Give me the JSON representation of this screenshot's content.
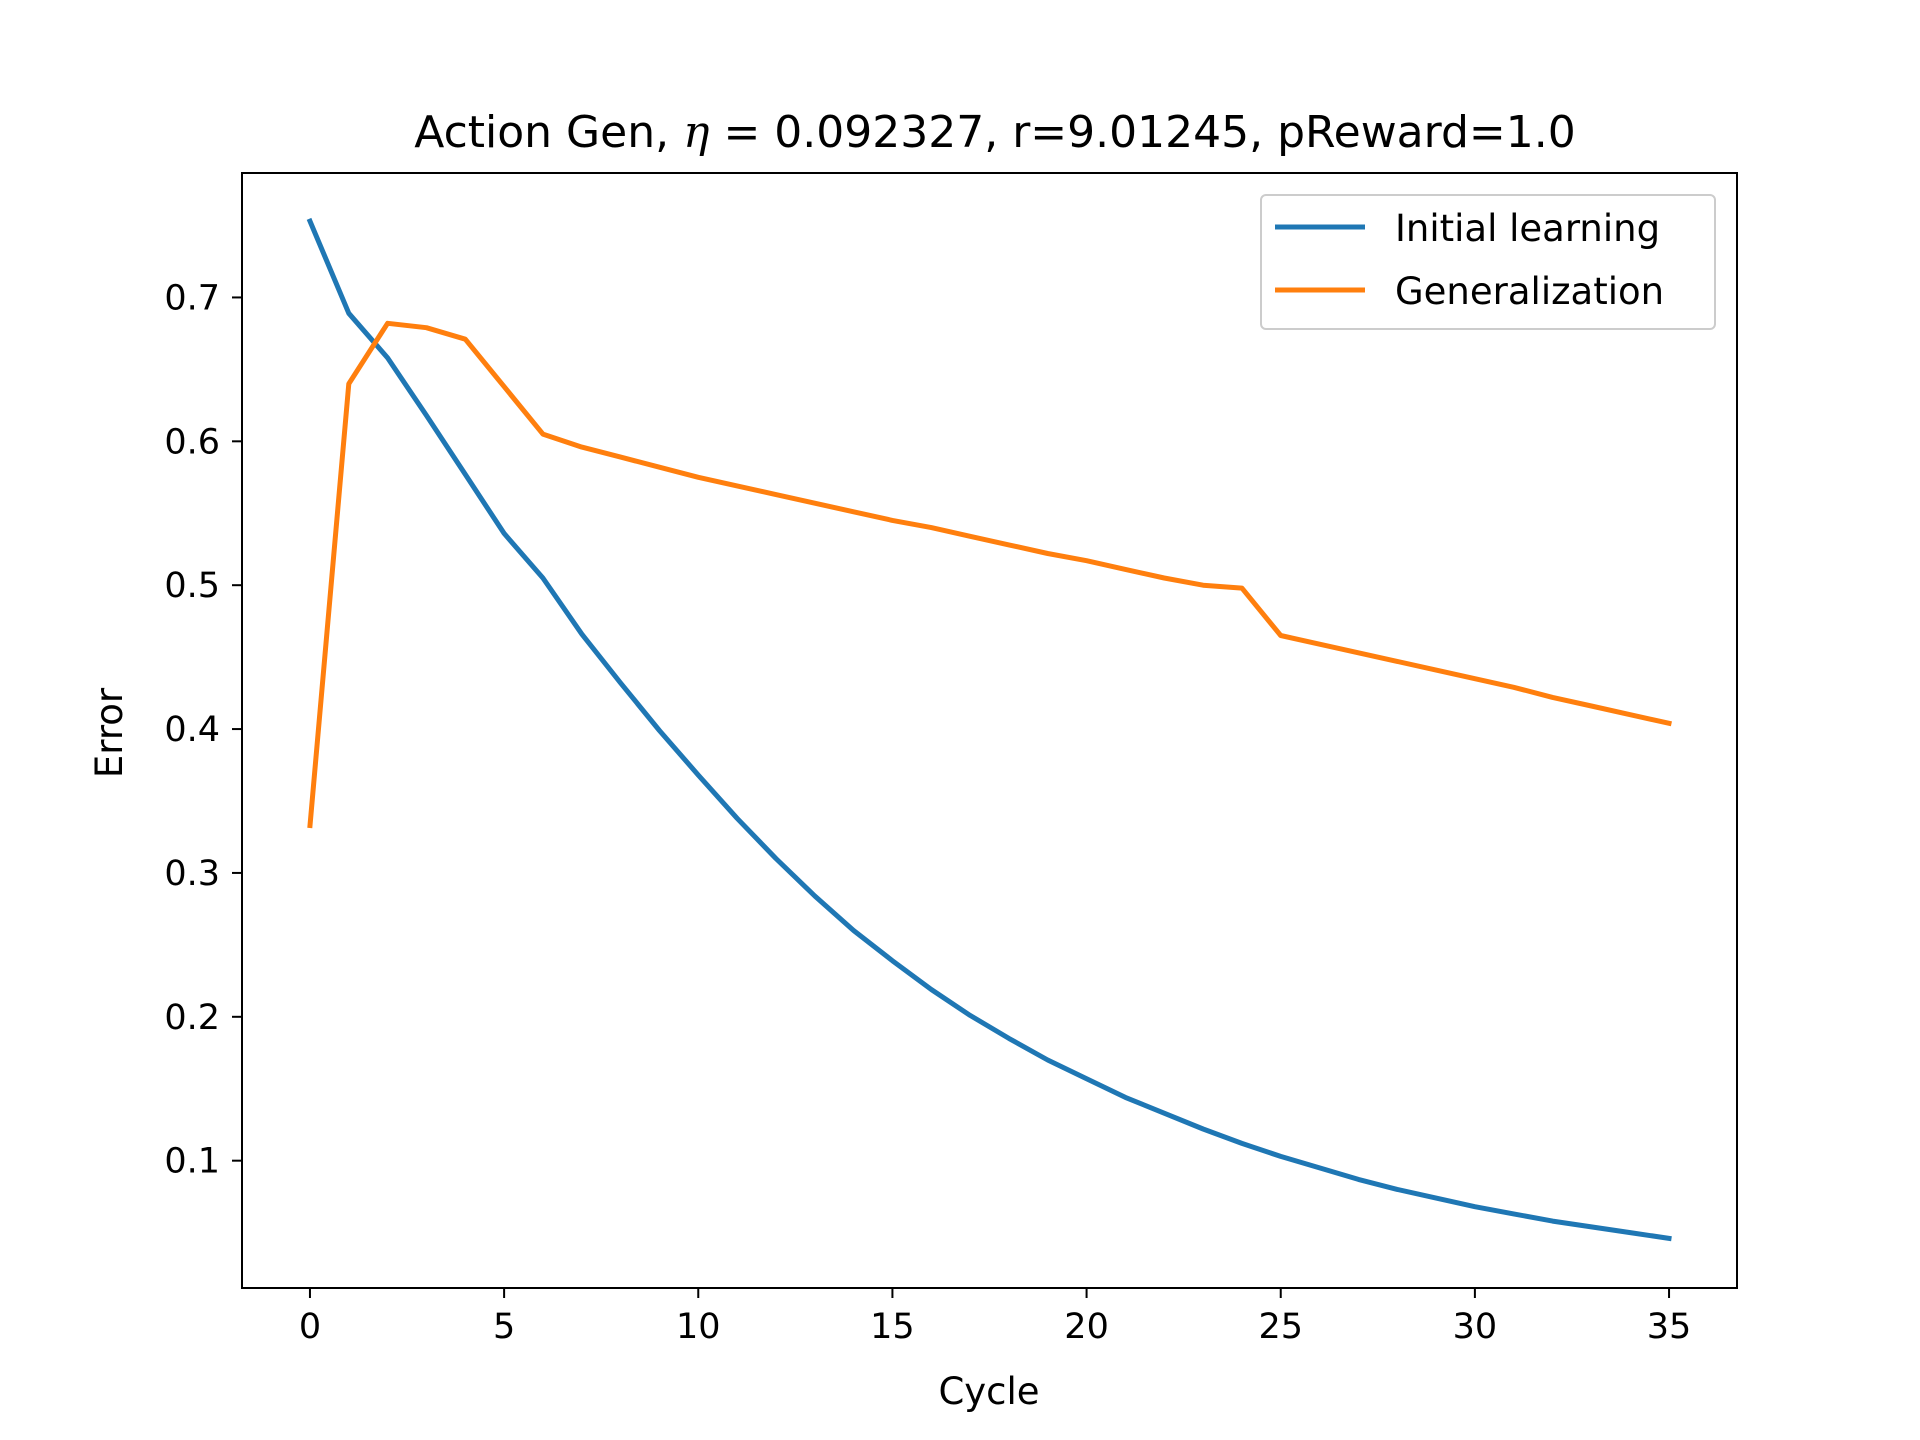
{
  "chart_data": {
    "type": "line",
    "title": {
      "prefix": "Action Gen, ",
      "symbol": "η",
      "rest": " = 0.092327, r=9.01245, pReward=1.0"
    },
    "xlabel": "Cycle",
    "ylabel": "Error",
    "xlim": [
      -1.75,
      36.75
    ],
    "ylim": [
      0.0115,
      0.7865
    ],
    "xticks": [
      0,
      5,
      10,
      15,
      20,
      25,
      30,
      35
    ],
    "xtick_labels": [
      "0",
      "5",
      "10",
      "15",
      "20",
      "25",
      "30",
      "35"
    ],
    "yticks": [
      0.1,
      0.2,
      0.3,
      0.4,
      0.5,
      0.6,
      0.7
    ],
    "ytick_labels": [
      "0.1",
      "0.2",
      "0.3",
      "0.4",
      "0.5",
      "0.6",
      "0.7"
    ],
    "grid": false,
    "legend_position": "top-right",
    "x": [
      0,
      1,
      2,
      3,
      4,
      5,
      6,
      7,
      8,
      9,
      10,
      11,
      12,
      13,
      14,
      15,
      16,
      17,
      18,
      19,
      20,
      21,
      22,
      23,
      24,
      25,
      26,
      27,
      28,
      29,
      30,
      31,
      32,
      33,
      34,
      35
    ],
    "series": [
      {
        "name": "Initial learning",
        "color": "#1f77b4",
        "values": [
          0.753,
          0.689,
          0.658,
          0.618,
          0.577,
          0.536,
          0.505,
          0.466,
          0.432,
          0.399,
          0.368,
          0.338,
          0.31,
          0.284,
          0.26,
          0.239,
          0.219,
          0.201,
          0.185,
          0.17,
          0.157,
          0.144,
          0.133,
          0.122,
          0.112,
          0.103,
          0.095,
          0.087,
          0.08,
          0.074,
          0.068,
          0.063,
          0.058,
          0.054,
          0.05,
          0.046
        ]
      },
      {
        "name": "Generalization",
        "color": "#ff7f0e",
        "values": [
          0.333,
          0.64,
          0.682,
          0.679,
          0.671,
          0.638,
          0.605,
          0.596,
          0.589,
          0.582,
          0.575,
          0.569,
          0.563,
          0.557,
          0.551,
          0.545,
          0.54,
          0.534,
          0.528,
          0.522,
          0.517,
          0.511,
          0.505,
          0.5,
          0.498,
          0.465,
          0.459,
          0.453,
          0.447,
          0.441,
          0.435,
          0.429,
          0.422,
          0.416,
          0.41,
          0.404
        ]
      }
    ]
  }
}
